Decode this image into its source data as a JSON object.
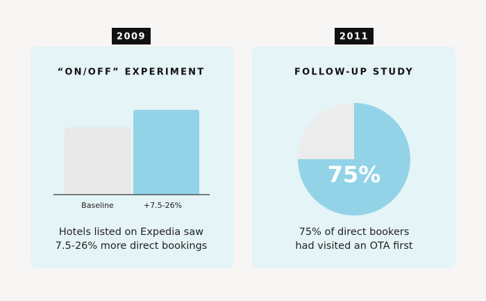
{
  "chart_data": [
    {
      "type": "bar",
      "year": "2009",
      "title": "“ON/OFF” EXPERIMENT",
      "categories": [
        "Baseline",
        "+7.5-26%"
      ],
      "values": [
        100,
        126
      ],
      "colors": [
        "#e9e9e9",
        "#93d3e8"
      ],
      "ylim": [
        0,
        126
      ],
      "caption": [
        "Hotels listed on Expedia saw",
        "7.5-26% more direct bookings"
      ]
    },
    {
      "type": "pie",
      "year": "2011",
      "title": "FOLLOW-UP STUDY",
      "values": [
        75,
        25
      ],
      "value_labels": [
        "75%",
        null
      ],
      "colors": [
        "#93d3e8",
        "#ececec"
      ],
      "caption": [
        "75% of direct bookers",
        "had visited an OTA first"
      ]
    }
  ]
}
